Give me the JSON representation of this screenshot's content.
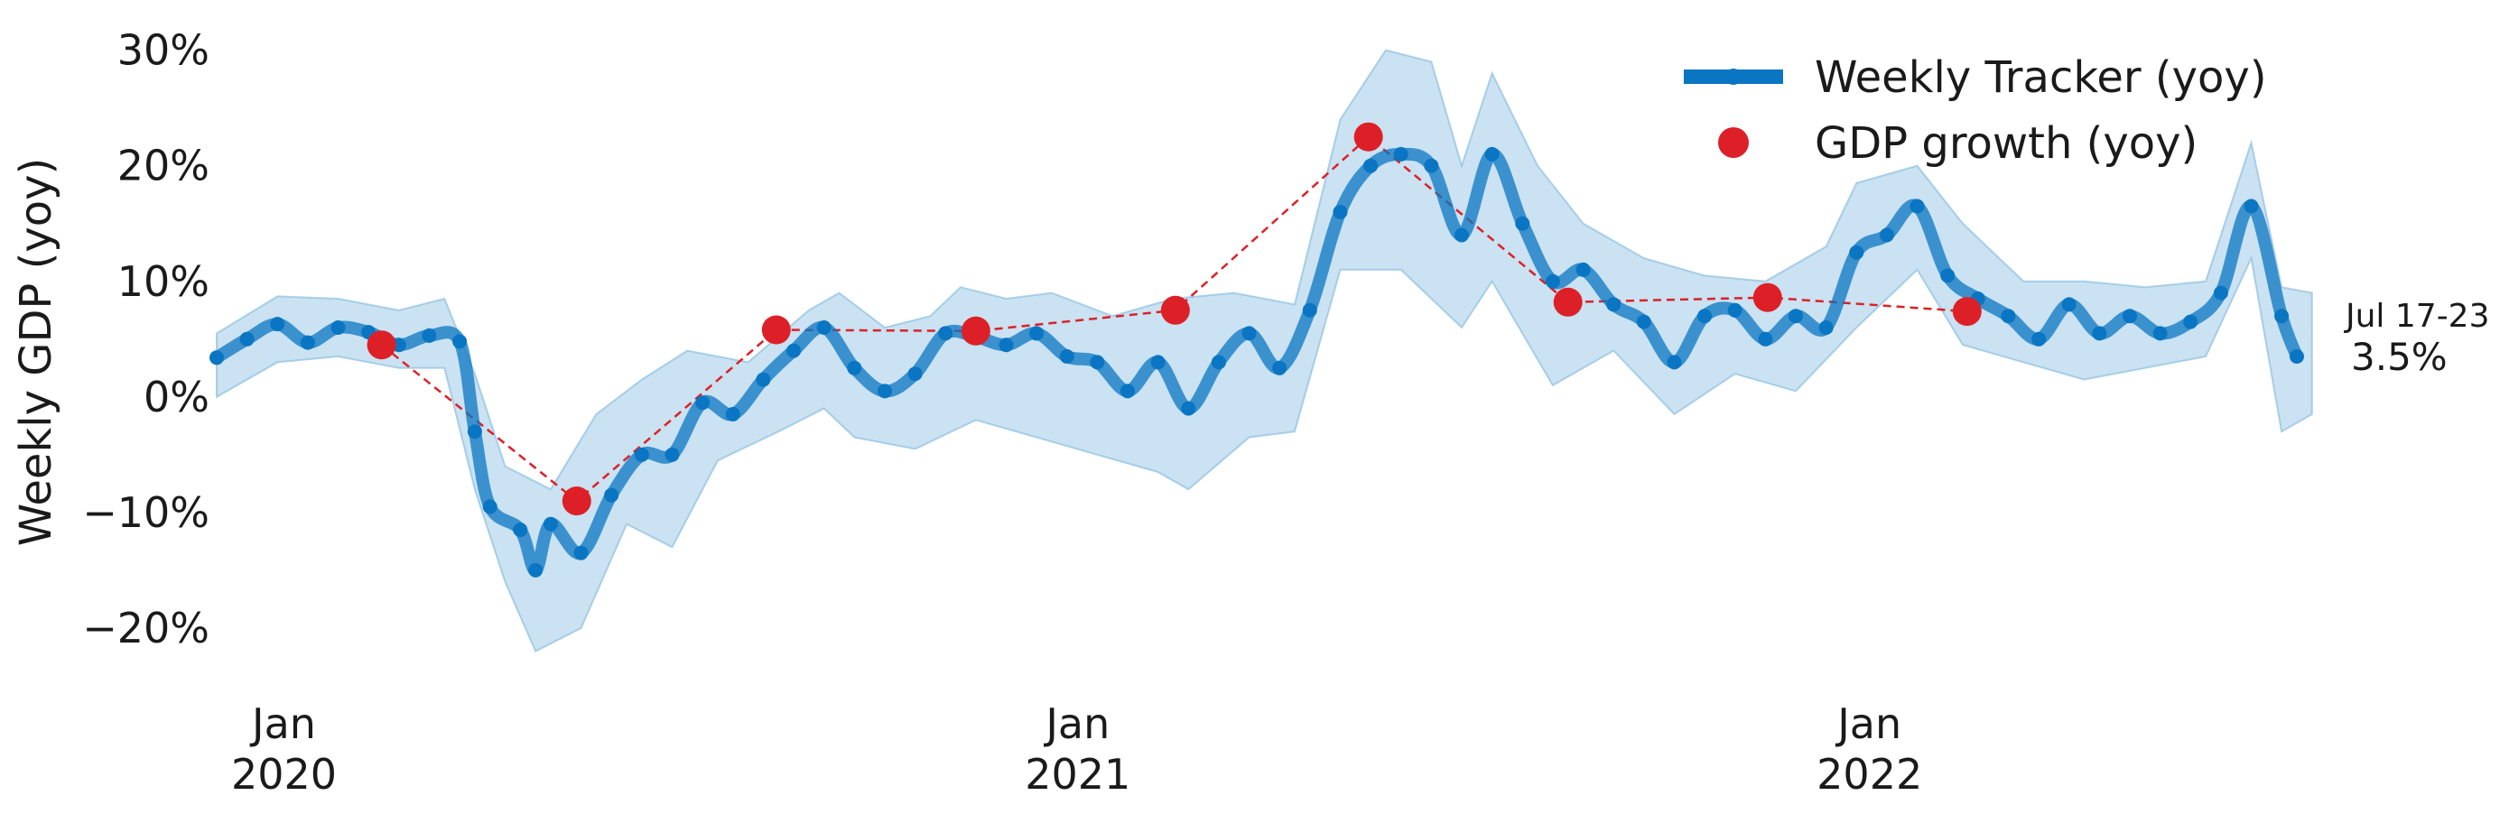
{
  "chart_data": {
    "type": "line",
    "title": "",
    "xlabel": "",
    "ylabel": "Weekly GDP (yoy)",
    "ylim": [
      -25,
      32
    ],
    "xlim": [
      "2019-12-01",
      "2022-08-01"
    ],
    "yticks": [
      -20,
      -10,
      0,
      10,
      20,
      30
    ],
    "ytick_labels": [
      "−20%",
      "−10%",
      "0%",
      "10%",
      "20%",
      "30%"
    ],
    "xticks": [
      {
        "date": "2020-01-01",
        "label": "Jan",
        "sublabel": "2020"
      },
      {
        "date": "2021-01-01",
        "label": "Jan",
        "sublabel": "2021"
      },
      {
        "date": "2022-01-01",
        "label": "Jan",
        "sublabel": "2022"
      }
    ],
    "grid": false,
    "legend_position": "top-right",
    "colors": {
      "tracker": "#0a75c2",
      "band": "#9ecae6",
      "gdp": "#dd2027"
    },
    "series": [
      {
        "name": "Weekly Tracker (yoy)",
        "kind": "line",
        "points": [
          [
            "2019-12-01",
            3.4
          ],
          [
            "2019-12-15",
            5.0
          ],
          [
            "2019-12-29",
            6.3
          ],
          [
            "2020-01-12",
            4.7
          ],
          [
            "2020-01-26",
            6.0
          ],
          [
            "2020-02-09",
            5.6
          ],
          [
            "2020-02-23",
            4.5
          ],
          [
            "2020-03-08",
            5.3
          ],
          [
            "2020-03-22",
            4.8
          ],
          [
            "2020-03-29",
            -3.0
          ],
          [
            "2020-04-05",
            -9.5
          ],
          [
            "2020-04-19",
            -11.5
          ],
          [
            "2020-04-26",
            -15.0
          ],
          [
            "2020-05-03",
            -11.0
          ],
          [
            "2020-05-17",
            -13.5
          ],
          [
            "2020-05-31",
            -8.5
          ],
          [
            "2020-06-14",
            -5.0
          ],
          [
            "2020-06-28",
            -5.0
          ],
          [
            "2020-07-12",
            -0.5
          ],
          [
            "2020-07-26",
            -1.5
          ],
          [
            "2020-08-09",
            1.5
          ],
          [
            "2020-08-23",
            4.0
          ],
          [
            "2020-09-06",
            6.0
          ],
          [
            "2020-09-20",
            2.5
          ],
          [
            "2020-10-04",
            0.5
          ],
          [
            "2020-10-18",
            2.0
          ],
          [
            "2020-11-01",
            5.5
          ],
          [
            "2020-11-15",
            5.2
          ],
          [
            "2020-11-29",
            4.5
          ],
          [
            "2020-12-13",
            5.5
          ],
          [
            "2020-12-27",
            3.5
          ],
          [
            "2021-01-10",
            3.0
          ],
          [
            "2021-01-24",
            0.5
          ],
          [
            "2021-02-07",
            3.0
          ],
          [
            "2021-02-21",
            -1.0
          ],
          [
            "2021-03-07",
            3.0
          ],
          [
            "2021-03-21",
            5.5
          ],
          [
            "2021-04-04",
            2.5
          ],
          [
            "2021-04-18",
            7.5
          ],
          [
            "2021-05-02",
            16.0
          ],
          [
            "2021-05-16",
            20.0
          ],
          [
            "2021-05-30",
            21.0
          ],
          [
            "2021-06-13",
            20.0
          ],
          [
            "2021-06-27",
            14.0
          ],
          [
            "2021-07-11",
            21.0
          ],
          [
            "2021-07-25",
            15.0
          ],
          [
            "2021-08-08",
            10.0
          ],
          [
            "2021-08-22",
            11.0
          ],
          [
            "2021-09-05",
            8.0
          ],
          [
            "2021-09-19",
            6.5
          ],
          [
            "2021-10-03",
            3.0
          ],
          [
            "2021-10-17",
            7.0
          ],
          [
            "2021-10-31",
            7.5
          ],
          [
            "2021-11-14",
            5.0
          ],
          [
            "2021-11-28",
            7.0
          ],
          [
            "2021-12-12",
            6.0
          ],
          [
            "2021-12-26",
            12.5
          ],
          [
            "2022-01-09",
            14.0
          ],
          [
            "2022-01-23",
            16.5
          ],
          [
            "2022-02-06",
            10.5
          ],
          [
            "2022-02-20",
            8.5
          ],
          [
            "2022-03-06",
            7.0
          ],
          [
            "2022-03-20",
            5.0
          ],
          [
            "2022-04-03",
            8.0
          ],
          [
            "2022-04-17",
            5.5
          ],
          [
            "2022-05-01",
            7.0
          ],
          [
            "2022-05-15",
            5.5
          ],
          [
            "2022-05-29",
            6.5
          ],
          [
            "2022-06-12",
            9.0
          ],
          [
            "2022-06-26",
            16.5
          ],
          [
            "2022-07-10",
            7.0
          ],
          [
            "2022-07-17",
            3.5
          ]
        ]
      },
      {
        "name": "",
        "kind": "band",
        "upper": [
          [
            "2019-12-01",
            5.5
          ],
          [
            "2019-12-29",
            8.7
          ],
          [
            "2020-01-26",
            8.5
          ],
          [
            "2020-02-23",
            7.5
          ],
          [
            "2020-03-15",
            8.5
          ],
          [
            "2020-03-29",
            2.0
          ],
          [
            "2020-04-12",
            -6.0
          ],
          [
            "2020-05-03",
            -8.0
          ],
          [
            "2020-05-24",
            -1.5
          ],
          [
            "2020-06-14",
            1.5
          ],
          [
            "2020-07-05",
            4.0
          ],
          [
            "2020-08-02",
            3.0
          ],
          [
            "2020-08-30",
            7.5
          ],
          [
            "2020-09-13",
            9.0
          ],
          [
            "2020-10-04",
            6.0
          ],
          [
            "2020-10-25",
            7.0
          ],
          [
            "2020-11-08",
            9.5
          ],
          [
            "2020-11-29",
            8.5
          ],
          [
            "2020-12-20",
            9.0
          ],
          [
            "2021-01-17",
            7.0
          ],
          [
            "2021-02-14",
            8.5
          ],
          [
            "2021-03-14",
            9.0
          ],
          [
            "2021-04-11",
            8.0
          ],
          [
            "2021-05-02",
            24.0
          ],
          [
            "2021-05-23",
            30.0
          ],
          [
            "2021-06-13",
            29.0
          ],
          [
            "2021-06-27",
            20.0
          ],
          [
            "2021-07-11",
            28.0
          ],
          [
            "2021-08-01",
            20.0
          ],
          [
            "2021-08-22",
            15.0
          ],
          [
            "2021-09-19",
            12.0
          ],
          [
            "2021-10-17",
            10.5
          ],
          [
            "2021-11-14",
            10.0
          ],
          [
            "2021-12-12",
            13.0
          ],
          [
            "2021-12-26",
            18.5
          ],
          [
            "2022-01-23",
            20.0
          ],
          [
            "2022-02-13",
            15.0
          ],
          [
            "2022-03-13",
            10.0
          ],
          [
            "2022-04-10",
            10.0
          ],
          [
            "2022-05-08",
            9.5
          ],
          [
            "2022-06-05",
            10.0
          ],
          [
            "2022-06-26",
            22.0
          ],
          [
            "2022-07-10",
            9.5
          ],
          [
            "2022-07-24",
            9.0
          ]
        ],
        "lower": [
          [
            "2019-12-01",
            0.0
          ],
          [
            "2019-12-29",
            3.0
          ],
          [
            "2020-01-26",
            3.5
          ],
          [
            "2020-02-23",
            2.5
          ],
          [
            "2020-03-15",
            2.5
          ],
          [
            "2020-03-29",
            -8.0
          ],
          [
            "2020-04-12",
            -16.0
          ],
          [
            "2020-04-26",
            -22.0
          ],
          [
            "2020-05-17",
            -20.0
          ],
          [
            "2020-06-07",
            -11.0
          ],
          [
            "2020-06-28",
            -13.0
          ],
          [
            "2020-07-19",
            -5.5
          ],
          [
            "2020-08-16",
            -3.0
          ],
          [
            "2020-09-06",
            -1.0
          ],
          [
            "2020-09-20",
            -3.5
          ],
          [
            "2020-10-18",
            -4.5
          ],
          [
            "2020-11-15",
            -2.0
          ],
          [
            "2020-12-13",
            -3.5
          ],
          [
            "2021-01-10",
            -5.0
          ],
          [
            "2021-02-07",
            -6.5
          ],
          [
            "2021-02-21",
            -8.0
          ],
          [
            "2021-03-21",
            -3.5
          ],
          [
            "2021-04-11",
            -3.0
          ],
          [
            "2021-05-02",
            11.0
          ],
          [
            "2021-05-30",
            11.0
          ],
          [
            "2021-06-27",
            6.0
          ],
          [
            "2021-07-11",
            10.0
          ],
          [
            "2021-08-08",
            1.0
          ],
          [
            "2021-09-05",
            4.0
          ],
          [
            "2021-10-03",
            -1.5
          ],
          [
            "2021-10-31",
            2.0
          ],
          [
            "2021-11-28",
            0.5
          ],
          [
            "2021-12-26",
            6.0
          ],
          [
            "2022-01-23",
            11.0
          ],
          [
            "2022-02-13",
            4.5
          ],
          [
            "2022-03-13",
            3.0
          ],
          [
            "2022-04-10",
            1.5
          ],
          [
            "2022-05-08",
            2.5
          ],
          [
            "2022-06-05",
            3.5
          ],
          [
            "2022-06-26",
            12.0
          ],
          [
            "2022-07-10",
            -3.0
          ],
          [
            "2022-07-24",
            -1.5
          ]
        ]
      },
      {
        "name": "GDP growth (yoy)",
        "kind": "scatter",
        "points": [
          [
            "2020-02-15",
            4.5
          ],
          [
            "2020-05-15",
            -9.0
          ],
          [
            "2020-08-15",
            5.8
          ],
          [
            "2020-11-15",
            5.7
          ],
          [
            "2021-02-15",
            7.5
          ],
          [
            "2021-05-15",
            22.5
          ],
          [
            "2021-08-15",
            8.2
          ],
          [
            "2021-11-15",
            8.6
          ],
          [
            "2022-02-15",
            7.4
          ]
        ]
      }
    ],
    "annotations": [
      {
        "label": "Jul 17-23",
        "value_label": "3.5%",
        "date": "2022-07-20",
        "value": 3.5
      }
    ]
  }
}
